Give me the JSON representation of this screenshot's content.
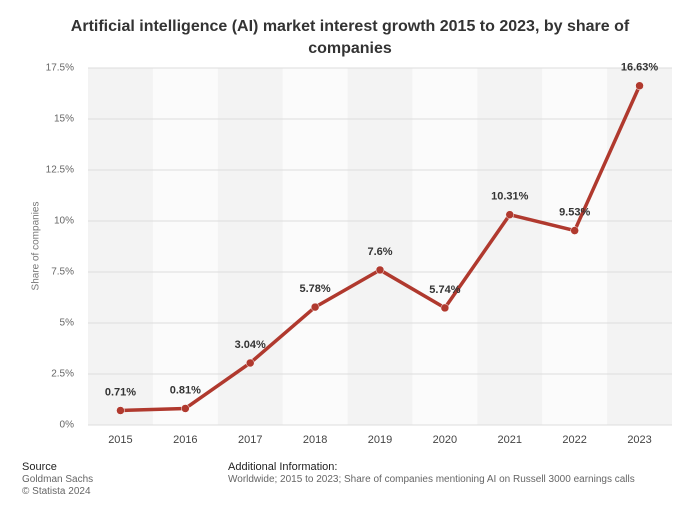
{
  "chart_data": {
    "type": "line",
    "title": "Artificial intelligence (AI) market interest growth 2015 to 2023, by share of companies",
    "y_label": "Share of companies",
    "categories": [
      "2015",
      "2016",
      "2017",
      "2018",
      "2019",
      "2020",
      "2021",
      "2022",
      "2023"
    ],
    "series": [
      {
        "name": "Share of companies",
        "color": "#b0392e",
        "values": [
          0.71,
          0.81,
          3.04,
          5.78,
          7.6,
          5.74,
          10.31,
          9.53,
          16.63
        ],
        "value_labels": [
          "0.71%",
          "0.81%",
          "3.04%",
          "5.78%",
          "7.6%",
          "5.74%",
          "10.31%",
          "9.53%",
          "16.63%"
        ]
      }
    ],
    "ylim": [
      0,
      17.5
    ],
    "yticks": [
      {
        "value": 0,
        "label": "0%"
      },
      {
        "value": 2.5,
        "label": "2.5%"
      },
      {
        "value": 5,
        "label": "5%"
      },
      {
        "value": 7.5,
        "label": "7.5%"
      },
      {
        "value": 10,
        "label": "10%"
      },
      {
        "value": 12.5,
        "label": "12.5%"
      },
      {
        "value": 15,
        "label": "15%"
      },
      {
        "value": 17.5,
        "label": "17.5%"
      }
    ],
    "grid": true
  },
  "footer": {
    "source_title": "Source",
    "source": "Goldman Sachs",
    "copyright": "© Statista 2024",
    "info_title": "Additional Information:",
    "info": "Worldwide; 2015 to 2023; Share of companies mentioning AI on Russell 3000 earnings calls"
  }
}
